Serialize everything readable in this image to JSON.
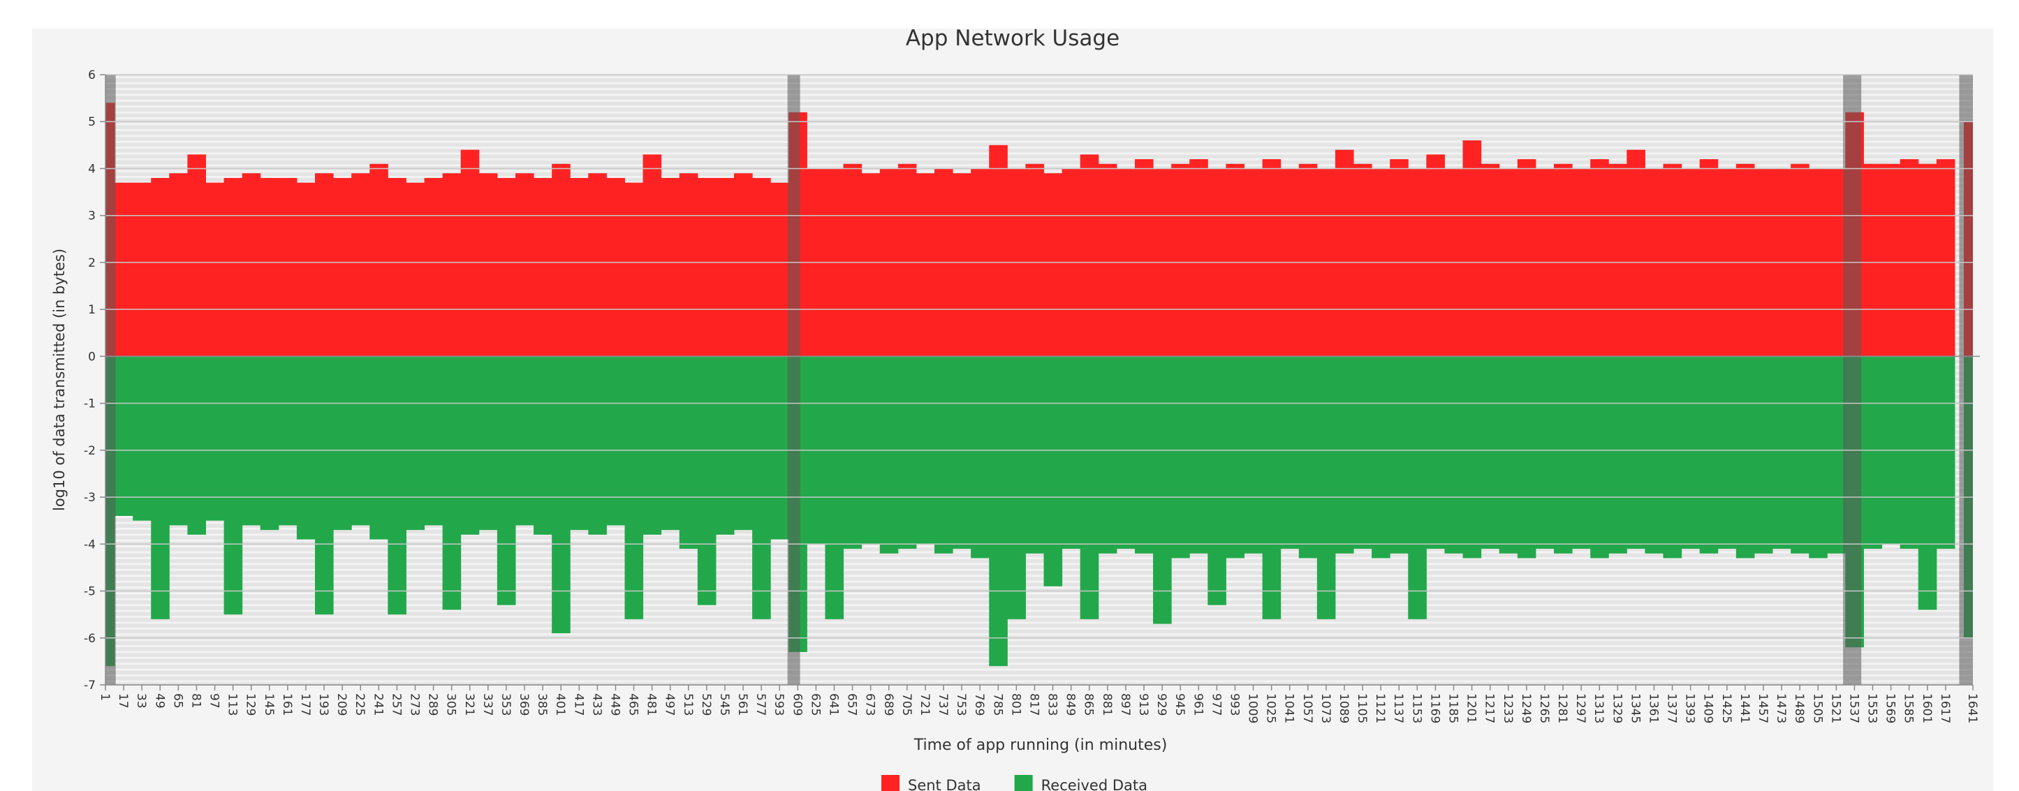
{
  "chart_data": {
    "type": "bar",
    "title": "App Network Usage",
    "xlabel": "Time of app running (in minutes)",
    "ylabel": "log10 of data transmitted (in bytes)",
    "x": [
      1,
      17,
      33,
      49,
      65,
      81,
      97,
      113,
      129,
      145,
      161,
      177,
      193,
      209,
      225,
      241,
      257,
      273,
      289,
      305,
      321,
      337,
      353,
      369,
      385,
      401,
      417,
      433,
      449,
      465,
      481,
      497,
      513,
      529,
      545,
      561,
      577,
      593,
      609,
      625,
      641,
      657,
      673,
      689,
      705,
      721,
      737,
      753,
      769,
      785,
      801,
      817,
      833,
      849,
      865,
      881,
      897,
      913,
      929,
      945,
      961,
      977,
      993,
      1009,
      1025,
      1041,
      1057,
      1073,
      1089,
      1105,
      1121,
      1137,
      1153,
      1169,
      1185,
      1201,
      1217,
      1233,
      1249,
      1265,
      1281,
      1297,
      1313,
      1329,
      1345,
      1361,
      1377,
      1393,
      1409,
      1425,
      1441,
      1457,
      1473,
      1489,
      1505,
      1521,
      1537,
      1553,
      1569,
      1585,
      1601,
      1617,
      1641
    ],
    "xticks": [
      1,
      17,
      33,
      49,
      65,
      81,
      97,
      113,
      129,
      145,
      161,
      177,
      193,
      209,
      225,
      241,
      257,
      273,
      289,
      305,
      321,
      337,
      353,
      369,
      385,
      401,
      417,
      433,
      449,
      465,
      481,
      497,
      513,
      529,
      545,
      561,
      577,
      593,
      609,
      625,
      641,
      657,
      673,
      689,
      705,
      721,
      737,
      753,
      769,
      785,
      801,
      817,
      833,
      849,
      865,
      881,
      897,
      913,
      929,
      945,
      961,
      977,
      993,
      1009,
      1025,
      1041,
      1057,
      1073,
      1089,
      1105,
      1121,
      1137,
      1153,
      1169,
      1185,
      1201,
      1217,
      1233,
      1249,
      1265,
      1281,
      1297,
      1313,
      1329,
      1345,
      1361,
      1377,
      1393,
      1409,
      1425,
      1441,
      1457,
      1473,
      1489,
      1505,
      1521,
      1537,
      1553,
      1569,
      1585,
      1601,
      1617,
      1641
    ],
    "xlim": [
      1,
      1641
    ],
    "ylim": [
      -7,
      6
    ],
    "yticks": [
      -7,
      -6,
      -5,
      -4,
      -3,
      -2,
      -1,
      0,
      1,
      2,
      3,
      4,
      5,
      6
    ],
    "grid": true,
    "legend": "bottom",
    "shaded_ranges": [
      [
        1,
        10
      ],
      [
        600,
        611
      ],
      [
        1527,
        1543
      ],
      [
        1629,
        1641
      ]
    ],
    "series": [
      {
        "name": "Sent Data",
        "color": "#ff2222",
        "values": [
          5.4,
          3.7,
          3.7,
          3.8,
          3.9,
          4.3,
          3.7,
          3.8,
          3.9,
          3.8,
          3.8,
          3.7,
          3.9,
          3.8,
          3.9,
          4.1,
          3.8,
          3.7,
          3.8,
          3.9,
          4.4,
          3.9,
          3.8,
          3.9,
          3.8,
          4.1,
          3.8,
          3.9,
          3.8,
          3.7,
          4.3,
          3.8,
          3.9,
          3.8,
          3.8,
          3.9,
          3.8,
          3.7,
          5.2,
          4.0,
          4.0,
          4.1,
          3.9,
          4.0,
          4.1,
          3.9,
          4.0,
          3.9,
          4.0,
          4.5,
          4.0,
          4.1,
          3.9,
          4.0,
          4.3,
          4.1,
          4.0,
          4.2,
          4.0,
          4.1,
          4.2,
          4.0,
          4.1,
          4.0,
          4.2,
          4.0,
          4.1,
          4.0,
          4.4,
          4.1,
          4.0,
          4.2,
          4.0,
          4.3,
          4.0,
          4.6,
          4.1,
          4.0,
          4.2,
          4.0,
          4.1,
          4.0,
          4.2,
          4.1,
          4.4,
          4.0,
          4.1,
          4.0,
          4.2,
          4.0,
          4.1,
          4.0,
          4.0,
          4.1,
          4.0,
          4.0,
          5.2,
          4.1,
          4.1,
          4.2,
          4.1,
          4.2,
          5.0
        ]
      },
      {
        "name": "Received Data",
        "color": "#22a84a",
        "values": [
          -6.6,
          -3.4,
          -3.5,
          -5.6,
          -3.6,
          -3.8,
          -3.5,
          -5.5,
          -3.6,
          -3.7,
          -3.6,
          -3.9,
          -5.5,
          -3.7,
          -3.6,
          -3.9,
          -5.5,
          -3.7,
          -3.6,
          -5.4,
          -3.8,
          -3.7,
          -5.3,
          -3.6,
          -3.8,
          -5.9,
          -3.7,
          -3.8,
          -3.6,
          -5.6,
          -3.8,
          -3.7,
          -4.1,
          -5.3,
          -3.8,
          -3.7,
          -5.6,
          -3.9,
          -6.3,
          -4.0,
          -5.6,
          -4.1,
          -4.0,
          -4.2,
          -4.1,
          -4.0,
          -4.2,
          -4.1,
          -4.3,
          -6.6,
          -5.6,
          -4.2,
          -4.9,
          -4.1,
          -5.6,
          -4.2,
          -4.1,
          -4.2,
          -5.7,
          -4.3,
          -4.2,
          -5.3,
          -4.3,
          -4.2,
          -5.6,
          -4.1,
          -4.3,
          -5.6,
          -4.2,
          -4.1,
          -4.3,
          -4.2,
          -5.6,
          -4.1,
          -4.2,
          -4.3,
          -4.1,
          -4.2,
          -4.3,
          -4.1,
          -4.2,
          -4.1,
          -4.3,
          -4.2,
          -4.1,
          -4.2,
          -4.3,
          -4.1,
          -4.2,
          -4.1,
          -4.3,
          -4.2,
          -4.1,
          -4.2,
          -4.3,
          -4.2,
          -6.2,
          -4.1,
          -4.0,
          -4.1,
          -5.4,
          -4.1,
          -6.0
        ]
      }
    ]
  }
}
